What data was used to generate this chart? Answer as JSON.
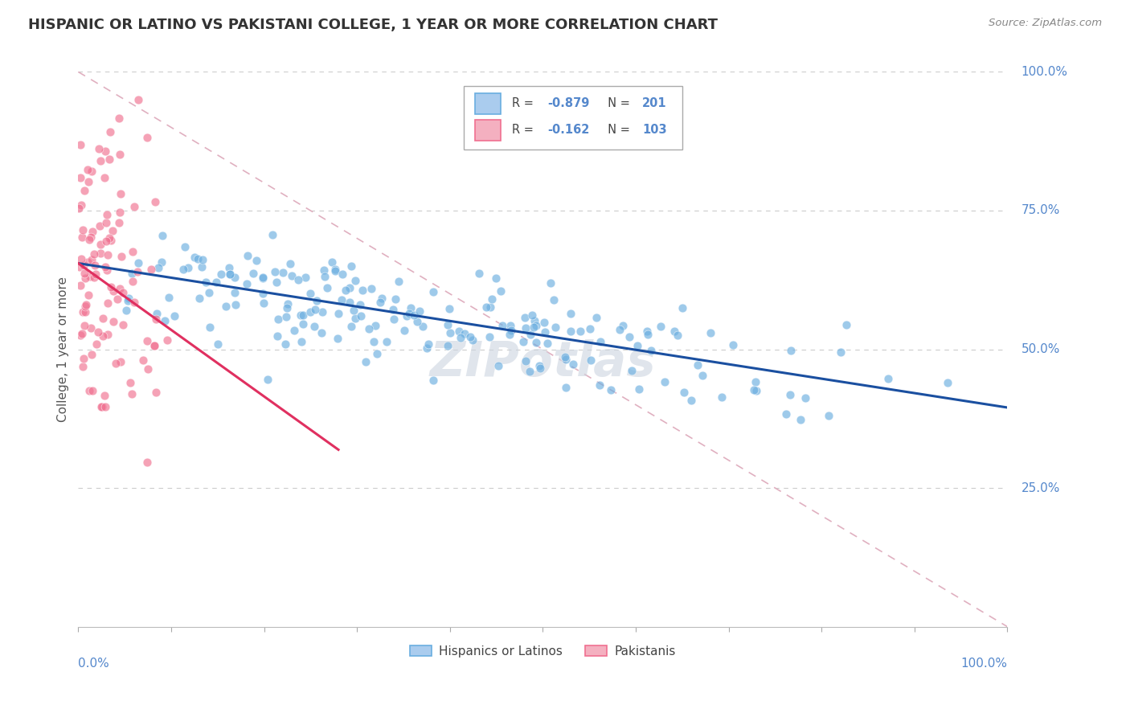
{
  "title": "HISPANIC OR LATINO VS PAKISTANI COLLEGE, 1 YEAR OR MORE CORRELATION CHART",
  "source_text": "Source: ZipAtlas.com",
  "ylabel": "College, 1 year or more",
  "right_yticks": [
    "100.0%",
    "75.0%",
    "50.0%",
    "25.0%"
  ],
  "right_ytick_vals": [
    1.0,
    0.75,
    0.5,
    0.25
  ],
  "blue_color": "#6aaee0",
  "pink_color": "#f07090",
  "blue_fill": "#aaccee",
  "pink_fill": "#f4b0c0",
  "trendline_blue_color": "#1a4fa0",
  "trendline_pink_color": "#e03060",
  "ref_line_color": "#e0b0c0",
  "background_color": "#ffffff",
  "title_fontsize": 13,
  "R_blue": -0.879,
  "N_blue": 201,
  "R_pink": -0.162,
  "N_pink": 103,
  "blue_intercept": 0.655,
  "blue_slope": -0.26,
  "pink_intercept": 0.655,
  "pink_slope": -1.2,
  "legend_R_blue": "-0.879",
  "legend_N_blue": "201",
  "legend_R_pink": "-0.162",
  "legend_N_pink": "103",
  "text_color_dark": "#444444",
  "text_color_blue": "#5588cc",
  "watermark": "ZIPotlas",
  "watermark_color": "#d8dde8"
}
